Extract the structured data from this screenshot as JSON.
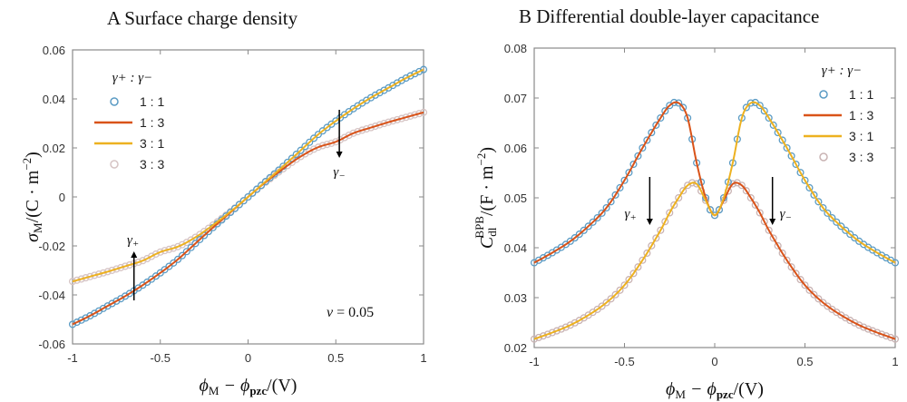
{
  "chart_data": [
    {
      "type": "line",
      "panel": "A",
      "title": "Surface charge density",
      "xlabel": {
        "a": "ϕ",
        "a_sub": "M",
        "mid": " − ϕ",
        "b_sub": "pzc",
        "end": "/(V)"
      },
      "ylabel": {
        "sym": "σ",
        "sub": "M",
        "rest": "/(C · m",
        "sup": "−2",
        "end": ")"
      },
      "xlim": [
        -1,
        1
      ],
      "ylim": [
        -0.06,
        0.06
      ],
      "xticks": [
        "-1",
        "-0.5",
        "0",
        "0.5",
        "1"
      ],
      "xtick_values": [
        -1,
        -0.5,
        0,
        0.5,
        1
      ],
      "yticks": [
        "-0.06",
        "-0.04",
        "-0.02",
        "0",
        "0.02",
        "0.04",
        "0.06"
      ],
      "ytick_values": [
        -0.06,
        -0.04,
        -0.02,
        0,
        0.02,
        0.04,
        0.06
      ],
      "legend_title": "γ+ : γ−",
      "legend_placement": "top-left",
      "annotation": "v = 0.05",
      "arrow_labels": [
        "γ+",
        "γ−"
      ],
      "x": [
        -1,
        -0.9,
        -0.8,
        -0.7,
        -0.6,
        -0.5,
        -0.4,
        -0.3,
        -0.2,
        -0.1,
        0,
        0.1,
        0.2,
        0.3,
        0.4,
        0.5,
        0.6,
        0.7,
        0.8,
        0.9,
        1
      ],
      "series": [
        {
          "name": "1 : 1",
          "style": "circles",
          "color": "#5b9bc4",
          "values": [
            -0.052,
            -0.0485,
            -0.0445,
            -0.0405,
            -0.036,
            -0.031,
            -0.0255,
            -0.019,
            -0.0125,
            -0.0063,
            0,
            0.0063,
            0.0125,
            0.019,
            0.0255,
            0.031,
            0.036,
            0.0405,
            0.0445,
            0.0485,
            0.052
          ]
        },
        {
          "name": "1 : 3",
          "style": "line",
          "color": "#d95319",
          "values": [
            -0.052,
            -0.0485,
            -0.0445,
            -0.0405,
            -0.036,
            -0.031,
            -0.0255,
            -0.019,
            -0.0125,
            -0.0063,
            0,
            0.006,
            0.0115,
            0.0165,
            0.0203,
            0.0225,
            0.026,
            0.0283,
            0.0305,
            0.0325,
            0.0345
          ]
        },
        {
          "name": "3 : 1",
          "style": "line",
          "color": "#edb120",
          "values": [
            -0.0345,
            -0.0325,
            -0.0305,
            -0.0283,
            -0.026,
            -0.0225,
            -0.0203,
            -0.0165,
            -0.0115,
            -0.006,
            0,
            0.0063,
            0.0125,
            0.019,
            0.0255,
            0.031,
            0.036,
            0.0405,
            0.0445,
            0.0485,
            0.052
          ]
        },
        {
          "name": "3 : 3",
          "style": "circles",
          "color": "#d6c4c4",
          "values": [
            -0.0345,
            -0.0325,
            -0.0305,
            -0.0283,
            -0.026,
            -0.0225,
            -0.0203,
            -0.0165,
            -0.0115,
            -0.006,
            0,
            0.006,
            0.0115,
            0.0165,
            0.0203,
            0.0225,
            0.026,
            0.0283,
            0.0305,
            0.0325,
            0.0345
          ]
        }
      ]
    },
    {
      "type": "line",
      "panel": "B",
      "title": "Differential double-layer capacitance",
      "xlabel": {
        "a": "ϕ",
        "a_sub": "M",
        "mid": " − ϕ",
        "b_sub": "pzc",
        "end": "/(V)"
      },
      "ylabel": {
        "sym": "C",
        "sub": "dl",
        "sup1": "BPB",
        "rest": "/(F · m",
        "sup": "−2",
        "end": ")"
      },
      "xlim": [
        -1,
        1
      ],
      "ylim": [
        0.02,
        0.08
      ],
      "xticks": [
        "-1",
        "-0.5",
        "0",
        "0.5",
        "1"
      ],
      "xtick_values": [
        -1,
        -0.5,
        0,
        0.5,
        1
      ],
      "yticks": [
        "0.02",
        "0.03",
        "0.04",
        "0.05",
        "0.06",
        "0.07",
        "0.08"
      ],
      "ytick_values": [
        0.02,
        0.03,
        0.04,
        0.05,
        0.06,
        0.07,
        0.08
      ],
      "legend_title": "γ+ : γ−",
      "legend_placement": "top-right",
      "arrow_labels": [
        "γ+",
        "γ−"
      ],
      "x": [
        -1,
        -0.9,
        -0.8,
        -0.7,
        -0.6,
        -0.5,
        -0.4,
        -0.3,
        -0.25,
        -0.2,
        -0.15,
        -0.1,
        -0.05,
        0,
        0.05,
        0.1,
        0.15,
        0.2,
        0.25,
        0.3,
        0.4,
        0.5,
        0.6,
        0.7,
        0.8,
        0.9,
        1
      ],
      "series": [
        {
          "name": "1 : 1",
          "style": "circles",
          "color": "#5b9bc4",
          "values": [
            0.037,
            0.039,
            0.0413,
            0.0443,
            0.048,
            0.0535,
            0.06,
            0.066,
            0.0685,
            0.069,
            0.066,
            0.057,
            0.05,
            0.0465,
            0.05,
            0.057,
            0.066,
            0.069,
            0.0685,
            0.066,
            0.06,
            0.0535,
            0.048,
            0.0443,
            0.0413,
            0.039,
            0.037
          ]
        },
        {
          "name": "1 : 3",
          "style": "line",
          "color": "#d95319",
          "values": [
            0.037,
            0.039,
            0.0413,
            0.0443,
            0.048,
            0.0535,
            0.06,
            0.066,
            0.0685,
            0.069,
            0.066,
            0.057,
            0.05,
            0.0465,
            0.0495,
            0.0528,
            0.0525,
            0.05,
            0.047,
            0.0435,
            0.0375,
            0.0325,
            0.029,
            0.0265,
            0.0245,
            0.023,
            0.0217
          ]
        },
        {
          "name": "3 : 1",
          "style": "line",
          "color": "#edb120",
          "values": [
            0.0217,
            0.023,
            0.0245,
            0.0265,
            0.029,
            0.0325,
            0.0375,
            0.0435,
            0.047,
            0.05,
            0.0525,
            0.0528,
            0.0495,
            0.0465,
            0.05,
            0.057,
            0.066,
            0.069,
            0.0685,
            0.066,
            0.06,
            0.0535,
            0.048,
            0.0443,
            0.0413,
            0.039,
            0.037
          ]
        },
        {
          "name": "3 : 3",
          "style": "circles",
          "color": "#c9b3b3",
          "values": [
            0.0217,
            0.023,
            0.0245,
            0.0265,
            0.029,
            0.0325,
            0.0375,
            0.0435,
            0.047,
            0.05,
            0.0525,
            0.0528,
            0.0495,
            0.0465,
            0.0495,
            0.0528,
            0.0525,
            0.05,
            0.047,
            0.0435,
            0.0375,
            0.0325,
            0.029,
            0.0265,
            0.0245,
            0.023,
            0.0217
          ]
        }
      ]
    }
  ]
}
